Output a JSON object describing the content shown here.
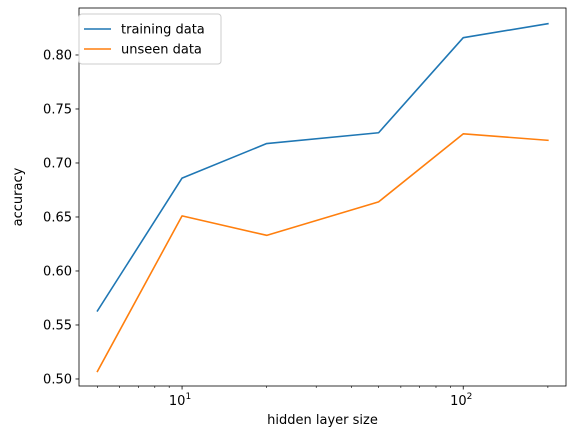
{
  "chart_data": {
    "type": "line",
    "xscale": "log",
    "x": [
      5,
      10,
      20,
      50,
      100,
      200
    ],
    "series": [
      {
        "name": "training data",
        "color": "#1f77b4",
        "values": [
          0.563,
          0.686,
          0.718,
          0.728,
          0.816,
          0.829
        ]
      },
      {
        "name": "unseen data",
        "color": "#ff7f0e",
        "values": [
          0.507,
          0.651,
          0.633,
          0.664,
          0.727,
          0.721
        ]
      }
    ],
    "xlim": [
      4.3,
      232
    ],
    "ylim": [
      0.4935,
      0.8435
    ],
    "xlabel": "hidden layer size",
    "ylabel": "accuracy",
    "xticks_major": [
      {
        "value": 10,
        "base": "10",
        "exp": "1"
      },
      {
        "value": 100,
        "base": "10",
        "exp": "2"
      }
    ],
    "xticks_minor": [
      5,
      6,
      7,
      8,
      9,
      20,
      30,
      40,
      50,
      60,
      70,
      80,
      90,
      200
    ],
    "yticks": [
      {
        "value": 0.5,
        "label": "0.50"
      },
      {
        "value": 0.55,
        "label": "0.55"
      },
      {
        "value": 0.6,
        "label": "0.60"
      },
      {
        "value": 0.65,
        "label": "0.65"
      },
      {
        "value": 0.7,
        "label": "0.70"
      },
      {
        "value": 0.75,
        "label": "0.75"
      },
      {
        "value": 0.8,
        "label": "0.80"
      }
    ],
    "grid": false,
    "legend_position": "top-left"
  }
}
